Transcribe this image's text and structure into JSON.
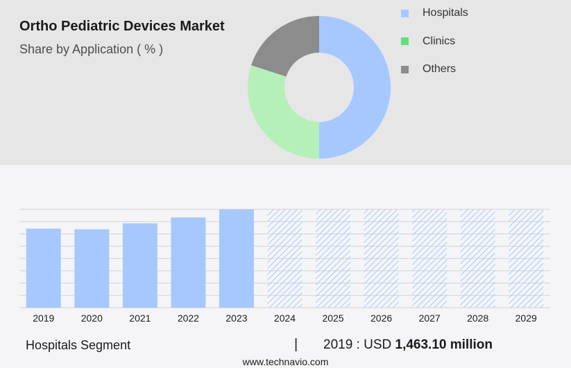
{
  "header": {
    "title": "Ortho Pediatric Devices Market",
    "subtitle": "Share by Application ( % )"
  },
  "legend": [
    {
      "label": "Hospitals",
      "color": "#a6c8ff"
    },
    {
      "label": "Clinics",
      "color": "#5ee07e"
    },
    {
      "label": "Others",
      "color": "#8c8c8c"
    }
  ],
  "footer": {
    "segment": "Hospitals Segment",
    "separator": "|",
    "year_label": "2019 : USD ",
    "value": "1,463.10 million",
    "source": "www.technavio.com"
  },
  "chart_data": [
    {
      "type": "pie",
      "labels": [
        "Hospitals",
        "Clinics",
        "Others"
      ],
      "values": [
        50,
        30,
        20
      ],
      "colors": [
        "#a6c8ff",
        "#b5f0b9",
        "#8c8c8c"
      ]
    },
    {
      "type": "bar",
      "categories": [
        "2019",
        "2020",
        "2021",
        "2022",
        "2023",
        "2024",
        "2025",
        "2026",
        "2027",
        "2028",
        "2029"
      ],
      "values": [
        1463.1,
        1450,
        1560,
        1670,
        1820,
        1820,
        1820,
        1820,
        1820,
        1820,
        1820
      ],
      "forecast_from": "2024",
      "color": "#a6c8ff",
      "grid": true
    }
  ]
}
